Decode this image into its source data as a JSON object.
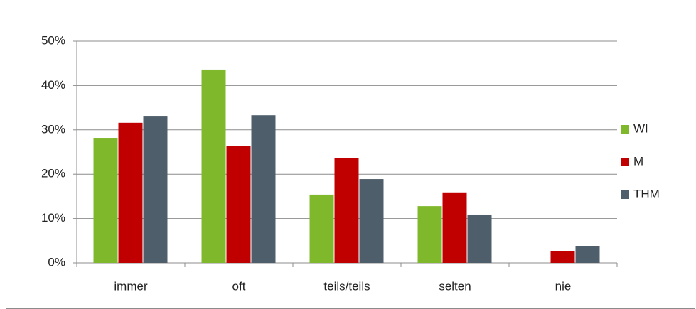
{
  "chart_data": {
    "type": "bar",
    "categories": [
      "immer",
      "oft",
      "teils/teils",
      "selten",
      "nie"
    ],
    "series": [
      {
        "name": "WI",
        "color": "#80b82c",
        "values": [
          28.2,
          43.6,
          15.4,
          12.8,
          0
        ]
      },
      {
        "name": "M",
        "color": "#c00000",
        "values": [
          31.6,
          26.3,
          23.7,
          15.9,
          2.7
        ]
      },
      {
        "name": "THM",
        "color": "#4f5e6b",
        "values": [
          33.0,
          33.3,
          18.9,
          10.9,
          3.7
        ]
      }
    ],
    "ylim": [
      0,
      50
    ],
    "yticks": [
      {
        "value": 0,
        "label": "0%"
      },
      {
        "value": 10,
        "label": "10%"
      },
      {
        "value": 20,
        "label": "20%"
      },
      {
        "value": 30,
        "label": "30%"
      },
      {
        "value": 40,
        "label": "40%"
      },
      {
        "value": 50,
        "label": "50%"
      }
    ],
    "grid": true,
    "legend": "right"
  }
}
